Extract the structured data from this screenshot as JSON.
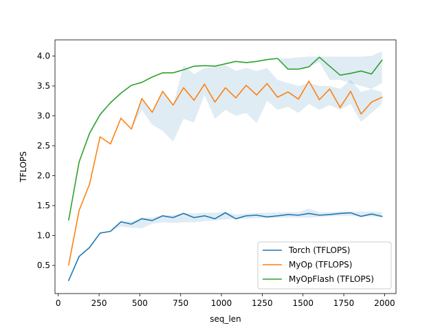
{
  "chart_data": {
    "type": "line",
    "title": "",
    "xlabel": "seq_len",
    "ylabel": "TFLOPS",
    "xlim": [
      -20,
      2070
    ],
    "ylim": [
      0.03,
      4.27
    ],
    "xticks": [
      0,
      250,
      500,
      750,
      1000,
      1250,
      1500,
      1750,
      2000
    ],
    "yticks": [
      0.5,
      1.0,
      1.5,
      2.0,
      2.5,
      3.0,
      3.5,
      4.0
    ],
    "xtick_labels": [
      "0",
      "250",
      "500",
      "750",
      "1000",
      "1250",
      "1500",
      "1750",
      "2000"
    ],
    "ytick_labels": [
      "0.5",
      "1.0",
      "1.5",
      "2.0",
      "2.5",
      "3.0",
      "3.5",
      "4.0"
    ],
    "grid": false,
    "legend_position": "lower-right",
    "x": [
      64,
      128,
      192,
      256,
      320,
      384,
      448,
      512,
      576,
      640,
      704,
      768,
      832,
      896,
      960,
      1024,
      1088,
      1152,
      1216,
      1280,
      1344,
      1408,
      1472,
      1536,
      1600,
      1664,
      1728,
      1792,
      1856,
      1920,
      1984
    ],
    "series": [
      {
        "name": "Torch (TFLOPS)",
        "color": "#1f77b4",
        "values": [
          0.25,
          0.65,
          0.8,
          1.04,
          1.07,
          1.23,
          1.19,
          1.28,
          1.25,
          1.33,
          1.3,
          1.37,
          1.3,
          1.33,
          1.28,
          1.38,
          1.28,
          1.33,
          1.34,
          1.31,
          1.33,
          1.35,
          1.34,
          1.37,
          1.34,
          1.35,
          1.37,
          1.38,
          1.32,
          1.36,
          1.32
        ],
        "band_lower": [
          0.25,
          0.65,
          0.8,
          1.04,
          1.07,
          1.15,
          1.13,
          1.12,
          1.2,
          1.22,
          1.21,
          1.22,
          1.22,
          1.24,
          1.25,
          1.27,
          1.28,
          1.28,
          1.29,
          1.29,
          1.3,
          1.3,
          1.3,
          1.3,
          1.31,
          1.32,
          1.33,
          1.33,
          1.31,
          1.32,
          1.3
        ],
        "band_upper": [
          0.25,
          0.65,
          0.8,
          1.04,
          1.07,
          1.24,
          1.24,
          1.3,
          1.3,
          1.34,
          1.34,
          1.38,
          1.37,
          1.38,
          1.38,
          1.4,
          1.35,
          1.37,
          1.38,
          1.38,
          1.39,
          1.39,
          1.39,
          1.45,
          1.39,
          1.39,
          1.4,
          1.4,
          1.4,
          1.4,
          1.39
        ]
      },
      {
        "name": "MyOp (TFLOPS)",
        "color": "#ff7f0e",
        "values": [
          0.51,
          1.42,
          1.86,
          2.65,
          2.53,
          2.96,
          2.78,
          3.29,
          3.06,
          3.41,
          3.18,
          3.47,
          3.26,
          3.53,
          3.23,
          3.47,
          3.3,
          3.51,
          3.35,
          3.54,
          3.31,
          3.4,
          3.28,
          3.58,
          3.27,
          3.45,
          3.14,
          3.41,
          3.03,
          3.23,
          3.31
        ],
        "band_lower": [
          0.51,
          1.42,
          1.86,
          2.65,
          2.53,
          2.96,
          2.78,
          3.1,
          2.85,
          2.75,
          2.57,
          2.95,
          2.89,
          3.35,
          2.95,
          3.1,
          3.0,
          3.05,
          2.88,
          3.25,
          3.1,
          3.15,
          3.05,
          3.2,
          3.1,
          3.18,
          3.1,
          3.2,
          2.9,
          3.05,
          3.2
        ],
        "band_upper": [
          0.51,
          1.42,
          1.86,
          2.65,
          2.53,
          2.96,
          2.78,
          3.29,
          3.06,
          3.41,
          3.18,
          3.85,
          3.7,
          3.8,
          3.82,
          3.85,
          3.75,
          3.8,
          3.75,
          3.8,
          3.6,
          3.55,
          3.5,
          3.55,
          3.5,
          3.5,
          3.45,
          3.6,
          3.4,
          3.45,
          3.4
        ]
      },
      {
        "name": "MyOpFlash (TFLOPS)",
        "color": "#2ca02c",
        "values": [
          1.26,
          2.23,
          2.71,
          3.02,
          3.22,
          3.38,
          3.51,
          3.56,
          3.65,
          3.72,
          3.72,
          3.77,
          3.83,
          3.84,
          3.83,
          3.87,
          3.91,
          3.89,
          3.91,
          3.94,
          3.96,
          3.78,
          3.78,
          3.82,
          3.98,
          3.83,
          3.68,
          3.71,
          3.75,
          3.7,
          3.93
        ],
        "band_lower": [
          1.26,
          2.23,
          2.71,
          3.02,
          3.22,
          3.38,
          3.51,
          3.56,
          3.65,
          3.72,
          3.72,
          3.77,
          3.83,
          3.84,
          3.83,
          3.87,
          3.91,
          3.89,
          3.91,
          3.94,
          3.96,
          3.78,
          3.78,
          3.82,
          3.9,
          3.6,
          3.6,
          3.55,
          3.5,
          3.45,
          3.55
        ],
        "band_upper": [
          1.26,
          2.23,
          2.71,
          3.02,
          3.22,
          3.38,
          3.51,
          3.56,
          3.65,
          3.72,
          3.72,
          3.77,
          3.83,
          3.84,
          3.83,
          3.87,
          3.91,
          3.89,
          3.91,
          3.94,
          3.96,
          3.96,
          3.98,
          3.99,
          3.99,
          3.99,
          3.99,
          3.99,
          3.99,
          4.0,
          4.08
        ]
      }
    ]
  }
}
